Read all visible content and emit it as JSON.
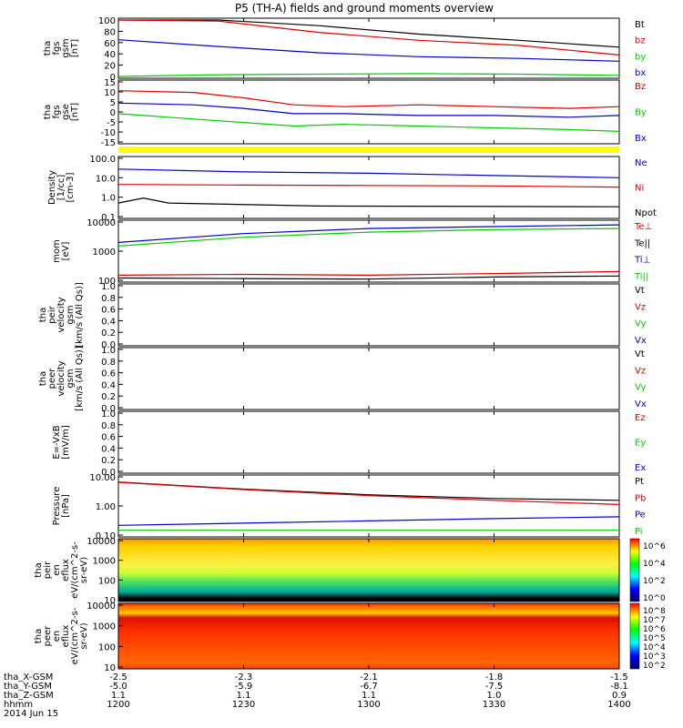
{
  "title": "P5 (TH-A) fields and ground moments overview",
  "colors": {
    "black": "#000000",
    "red": "#dd0000",
    "green": "#00cc00",
    "blue": "#0000cc",
    "yellow": "#ffff00"
  },
  "chart_data": [
    {
      "type": "line",
      "name": "panel-fgs-gsm",
      "ylabel": [
        "tha",
        "fgs",
        "gsm",
        "[nT]"
      ],
      "yticks": [
        "100",
        "80",
        "60",
        "40",
        "20",
        "0"
      ],
      "ylim": [
        0,
        100
      ],
      "series": [
        {
          "name": "Bt",
          "color": "#000000",
          "values": [
            [
              0,
              130
            ],
            [
              20,
              110
            ],
            [
              40,
              90
            ],
            [
              60,
              75
            ],
            [
              80,
              64
            ],
            [
              100,
              52
            ]
          ]
        },
        {
          "name": "bz",
          "color": "#dd0000",
          "values": [
            [
              0,
              120
            ],
            [
              20,
              98
            ],
            [
              40,
              78
            ],
            [
              60,
              64
            ],
            [
              80,
              55
            ],
            [
              100,
              38
            ]
          ]
        },
        {
          "name": "by",
          "color": "#00cc00",
          "values": [
            [
              0,
              0
            ],
            [
              20,
              3
            ],
            [
              40,
              4
            ],
            [
              60,
              5
            ],
            [
              80,
              4
            ],
            [
              100,
              2
            ]
          ]
        },
        {
          "name": "bx",
          "color": "#0000cc",
          "values": [
            [
              0,
              65
            ],
            [
              20,
              53
            ],
            [
              40,
              42
            ],
            [
              60,
              35
            ],
            [
              80,
              32
            ],
            [
              100,
              27
            ]
          ]
        }
      ]
    },
    {
      "type": "line",
      "name": "panel-fgs-gse",
      "ylabel": [
        "tha",
        "fgs",
        "gse",
        "[nT]"
      ],
      "yticks": [
        "15",
        "10",
        "5",
        "0",
        "-5",
        "-10",
        "-15"
      ],
      "ylim": [
        -18,
        16
      ],
      "series": [
        {
          "name": "Bz",
          "color": "#dd0000",
          "values": [
            [
              0,
              11
            ],
            [
              15,
              10
            ],
            [
              25,
              7
            ],
            [
              35,
              3
            ],
            [
              45,
              2
            ],
            [
              60,
              3
            ],
            [
              75,
              2
            ],
            [
              90,
              1
            ],
            [
              100,
              2
            ]
          ]
        },
        {
          "name": "By",
          "color": "#00cc00",
          "values": [
            [
              0,
              -2
            ],
            [
              15,
              -5
            ],
            [
              25,
              -7
            ],
            [
              35,
              -9
            ],
            [
              45,
              -8
            ],
            [
              60,
              -9
            ],
            [
              75,
              -10
            ],
            [
              90,
              -11
            ],
            [
              100,
              -12
            ]
          ]
        },
        {
          "name": "Bx",
          "color": "#0000cc",
          "values": [
            [
              0,
              4
            ],
            [
              15,
              3
            ],
            [
              25,
              1
            ],
            [
              35,
              -2
            ],
            [
              45,
              -2
            ],
            [
              60,
              -3
            ],
            [
              75,
              -3
            ],
            [
              90,
              -4
            ],
            [
              100,
              -3
            ]
          ]
        }
      ]
    },
    {
      "type": "line",
      "name": "panel-density",
      "scale": "log",
      "ylabel": [
        "Density",
        "[1/cc]",
        "[cm-3]"
      ],
      "yticks": [
        "100.0",
        "10.0",
        "1.0",
        "0.1"
      ],
      "ylim": [
        0.1,
        100
      ],
      "series": [
        {
          "name": "Ne",
          "color": "#0000cc",
          "values": [
            [
              0,
              28
            ],
            [
              25,
              20
            ],
            [
              50,
              17
            ],
            [
              75,
              13
            ],
            [
              100,
              10
            ]
          ]
        },
        {
          "name": "Ni",
          "color": "#dd0000",
          "values": [
            [
              0,
              4.5
            ],
            [
              25,
              4.2
            ],
            [
              50,
              4.0
            ],
            [
              75,
              3.8
            ],
            [
              100,
              3.3
            ]
          ]
        },
        {
          "name": "Npot",
          "color": "#000000",
          "values": [
            [
              0,
              0.5
            ],
            [
              5,
              0.9
            ],
            [
              10,
              0.5
            ],
            [
              40,
              0.35
            ],
            [
              100,
              0.32
            ]
          ]
        }
      ]
    },
    {
      "type": "line",
      "name": "panel-temperature",
      "scale": "log",
      "ylabel": [
        "mom",
        "[eV]"
      ],
      "yticks": [
        "10000",
        "1000",
        "100"
      ],
      "ylim": [
        100,
        10000
      ],
      "series": [
        {
          "name": "Te⊥",
          "color": "#dd0000",
          "values": [
            [
              0,
              150
            ],
            [
              25,
              160
            ],
            [
              50,
              150
            ],
            [
              75,
              170
            ],
            [
              100,
              200
            ]
          ]
        },
        {
          "name": "Te||",
          "color": "#000000",
          "values": [
            [
              0,
              120
            ],
            [
              25,
              115
            ],
            [
              50,
              110
            ],
            [
              75,
              130
            ],
            [
              100,
              140
            ]
          ]
        },
        {
          "name": "Ti⊥",
          "color": "#0000cc",
          "values": [
            [
              0,
              2000
            ],
            [
              25,
              4000
            ],
            [
              50,
              6000
            ],
            [
              75,
              7000
            ],
            [
              100,
              8000
            ]
          ]
        },
        {
          "name": "Ti||",
          "color": "#00cc00",
          "values": [
            [
              0,
              1500
            ],
            [
              25,
              3000
            ],
            [
              50,
              4500
            ],
            [
              75,
              5500
            ],
            [
              100,
              6000
            ]
          ]
        }
      ]
    },
    {
      "type": "line",
      "name": "panel-peir-velocity",
      "ylim": [
        0,
        1
      ],
      "ylabel": [
        "tha",
        "peir",
        "velocity",
        "gsm",
        "[km/s (All Qs)]"
      ],
      "yticks": [
        "1.0",
        "0.8",
        "0.6",
        "0.4",
        "0.2",
        "0.0"
      ],
      "series": [
        {
          "name": "Vt",
          "color": "#000000",
          "values": []
        },
        {
          "name": "Vz",
          "color": "#dd0000",
          "values": []
        },
        {
          "name": "Vy",
          "color": "#00cc00",
          "values": []
        },
        {
          "name": "Vx",
          "color": "#0000cc",
          "values": []
        }
      ]
    },
    {
      "type": "line",
      "name": "panel-peer-velocity",
      "ylim": [
        0,
        1
      ],
      "ylabel": [
        "tha",
        "peer",
        "velocity",
        "gsm",
        "[km/s (All Qs)]"
      ],
      "yticks": [
        "1.0",
        "0.8",
        "0.6",
        "0.4",
        "0.2",
        "0.0"
      ],
      "series": [
        {
          "name": "Vt",
          "color": "#000000",
          "values": []
        },
        {
          "name": "Vz",
          "color": "#dd0000",
          "values": []
        },
        {
          "name": "Vy",
          "color": "#00cc00",
          "values": []
        },
        {
          "name": "Vx",
          "color": "#0000cc",
          "values": []
        }
      ]
    },
    {
      "type": "line",
      "name": "panel-efield",
      "ylim": [
        0,
        1
      ],
      "ylabel": [
        "E=-VxB",
        "[mV/m]"
      ],
      "yticks": [
        "1.0",
        "0.8",
        "0.6",
        "0.4",
        "0.2",
        "0.0"
      ],
      "series": [
        {
          "name": "Ez",
          "color": "#dd0000",
          "values": []
        },
        {
          "name": "Ey",
          "color": "#00cc00",
          "values": []
        },
        {
          "name": "Ex",
          "color": "#0000cc",
          "values": []
        }
      ]
    },
    {
      "type": "line",
      "name": "panel-pressure",
      "scale": "log",
      "ylabel": [
        "Pressure",
        "[nPa]"
      ],
      "yticks": [
        "10.00",
        "1.00",
        "0.10"
      ],
      "ylim": [
        0.05,
        15
      ],
      "series": [
        {
          "name": "Pt",
          "color": "#000000",
          "values": [
            [
              0,
              9
            ],
            [
              25,
              4.5
            ],
            [
              50,
              2.6
            ],
            [
              75,
              1.8
            ],
            [
              100,
              1.5
            ]
          ]
        },
        {
          "name": "Pb",
          "color": "#dd0000",
          "values": [
            [
              0,
              8.8
            ],
            [
              25,
              4.3
            ],
            [
              50,
              2.4
            ],
            [
              75,
              1.5
            ],
            [
              100,
              1.0
            ]
          ]
        },
        {
          "name": "Pe",
          "color": "#0000cc",
          "values": [
            [
              0,
              0.13
            ],
            [
              25,
              0.16
            ],
            [
              50,
              0.2
            ],
            [
              75,
              0.25
            ],
            [
              100,
              0.3
            ]
          ]
        },
        {
          "name": "Pi",
          "color": "#00cc00",
          "values": [
            [
              0,
              0.08
            ],
            [
              25,
              0.08
            ],
            [
              50,
              0.08
            ],
            [
              75,
              0.08
            ],
            [
              100,
              0.08
            ]
          ]
        }
      ]
    },
    {
      "type": "heatmap",
      "name": "panel-peir-eflux",
      "ylabel": [
        "tha",
        "peir",
        "en",
        "eflux",
        "eV/(cm^2-s-",
        "sr-eV)"
      ],
      "yticks": [
        "10000",
        "1000",
        "100",
        "10"
      ],
      "colorbar_ticks": [
        "10^6",
        "10^4",
        "10^2",
        "10^0"
      ]
    },
    {
      "type": "heatmap",
      "name": "panel-peer-eflux",
      "ylabel": [
        "tha",
        "peer",
        "en",
        "eflux",
        "eV/(cm^2-s-",
        "sr-eV)"
      ],
      "yticks": [
        "10000",
        "1000",
        "100",
        "10"
      ],
      "colorbar_ticks": [
        "10^8",
        "10^7",
        "10^6",
        "10^5",
        "10^4",
        "10^3",
        "10^2"
      ]
    }
  ],
  "footer": {
    "row_labels": [
      "tha_X-GSM",
      "tha_Y-GSM",
      "tha_Z-GSM",
      "hhmm",
      "2014 Jun 15"
    ],
    "x_gsm": [
      "-2.5",
      "-2.3",
      "-2.1",
      "-1.8",
      "-1.5"
    ],
    "y_gsm": [
      "-5.0",
      "-5.9",
      "-6.7",
      "-7.5",
      "-8.1"
    ],
    "z_gsm": [
      "1.1",
      "1.1",
      "1.1",
      "1.0",
      "0.9"
    ],
    "hhmm": [
      "1200",
      "1230",
      "1300",
      "1330",
      "1400"
    ]
  }
}
